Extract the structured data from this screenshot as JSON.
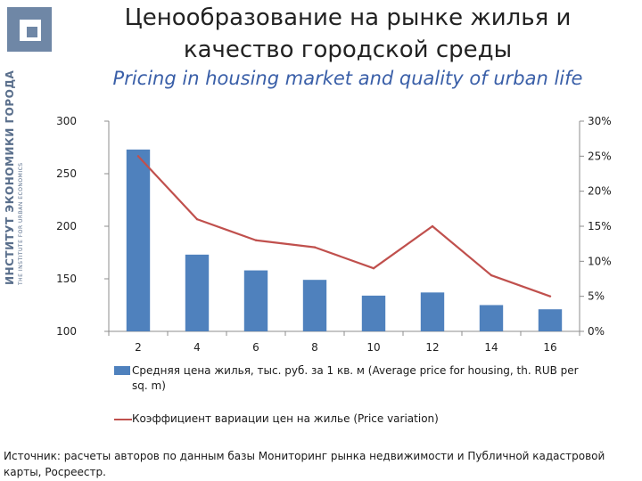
{
  "logo": {
    "brand_ru": "ИНСТИТУТ ЭКОНОМИКИ ГОРОДА",
    "brand_en": "THE INSTITUTE FOR URBAN ECONOMICS"
  },
  "title_ru": "Ценообразование на рынке жилья и качество городской среды",
  "title_en": "Pricing in housing market and quality of urban life",
  "chart_data": {
    "type": "bar",
    "categories": [
      "2",
      "4",
      "6",
      "8",
      "10",
      "12",
      "14",
      "16"
    ],
    "series": [
      {
        "name": "Средняя цена жилья, тыс. руб. за 1 кв. м (Average price for housing, th. RUB per sq. m)",
        "type": "bar",
        "axis": "left",
        "color": "#4f81bd",
        "values": [
          273,
          173,
          158,
          149,
          134,
          137,
          125,
          121
        ]
      },
      {
        "name": "Коэффициент вариации цен на жилье (Price variation)",
        "type": "line",
        "axis": "right",
        "color": "#c0504d",
        "values": [
          0.25,
          0.16,
          0.13,
          0.12,
          0.09,
          0.15,
          0.08,
          0.05
        ]
      }
    ],
    "y_left": {
      "min": 100,
      "max": 300,
      "ticks": [
        "100",
        "150",
        "200",
        "250",
        "300"
      ]
    },
    "y_right": {
      "min": 0,
      "max": 0.3,
      "ticks": [
        "0%",
        "5%",
        "10%",
        "15%",
        "20%",
        "25%",
        "30%"
      ]
    },
    "legend_position": "bottom",
    "grid": false
  },
  "legend": {
    "bar_label": "Средняя цена жилья, тыс. руб. за 1 кв. м (Average price for housing, th. RUB per sq. m)",
    "line_label": "Коэффициент вариации цен на жилье (Price variation)"
  },
  "source_text": "Источник: расчеты авторов по данным базы Мониторинг рынка недвижимости и Публичной кадастровой карты, Росреестр."
}
